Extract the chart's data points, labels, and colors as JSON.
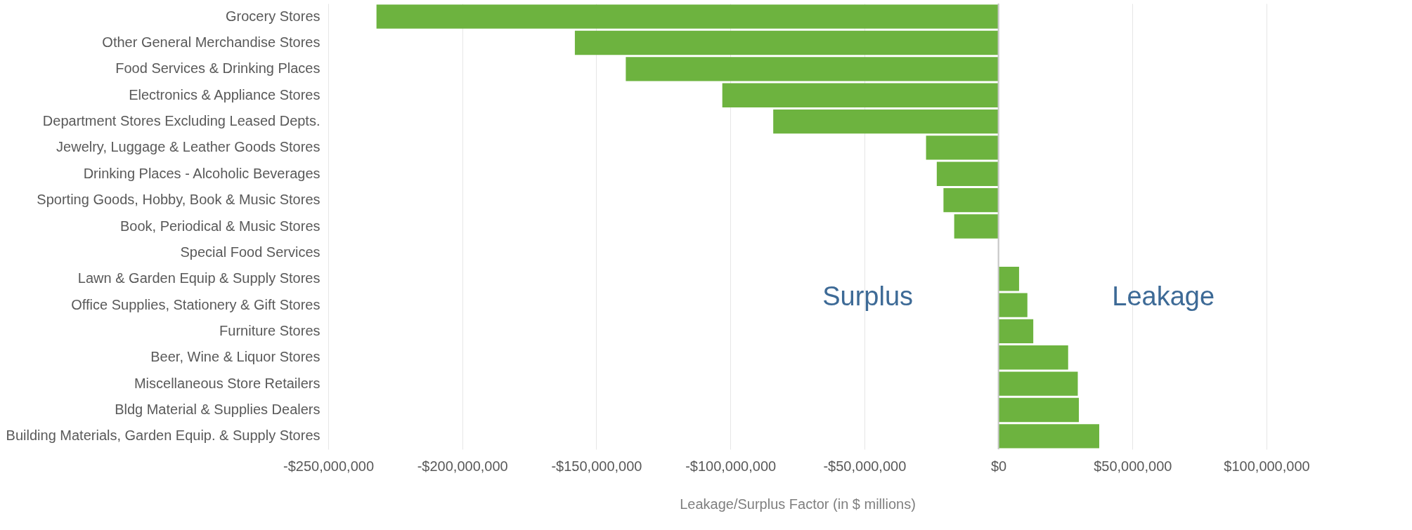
{
  "chart_data": {
    "type": "bar",
    "orientation": "horizontal",
    "xlabel": "Leakage/Surplus Factor (in $ millions)",
    "categories": [
      "Grocery Stores",
      "Other General Merchandise Stores",
      "Food Services & Drinking Places",
      "Electronics & Appliance Stores",
      "Department Stores Excluding Leased Depts.",
      "Jewelry, Luggage & Leather Goods Stores",
      "Drinking Places - Alcoholic Beverages",
      "Sporting Goods, Hobby, Book & Music Stores",
      "Book, Periodical & Music Stores",
      "Special Food Services",
      "Lawn & Garden Equip & Supply Stores",
      "Office Supplies, Stationery & Gift Stores",
      "Furniture Stores",
      "Beer, Wine & Liquor Stores",
      "Miscellaneous Store Retailers",
      "Bldg Material & Supplies Dealers",
      "Building Materials, Garden Equip. & Supply Stores"
    ],
    "values": [
      -232000000,
      -158000000,
      -139000000,
      -103000000,
      -84000000,
      -27000000,
      -23000000,
      -20500000,
      -16500000,
      0,
      7700000,
      10800000,
      13000000,
      26000000,
      29600000,
      30000000,
      37600000
    ],
    "color": "#6db33f",
    "xlim": [
      -250000000,
      100000000
    ],
    "xticks": [
      {
        "value": -250000000,
        "label": "-$250,000,000"
      },
      {
        "value": -200000000,
        "label": "-$200,000,000"
      },
      {
        "value": -150000000,
        "label": "-$150,000,000"
      },
      {
        "value": -100000000,
        "label": "-$100,000,000"
      },
      {
        "value": -50000000,
        "label": "-$50,000,000"
      },
      {
        "value": 0,
        "label": "$0"
      },
      {
        "value": 50000000,
        "label": "$50,000,000"
      },
      {
        "value": 100000000,
        "label": "$100,000,000"
      }
    ],
    "grid": "x",
    "annotations": [
      "Surplus",
      "Leakage"
    ]
  }
}
